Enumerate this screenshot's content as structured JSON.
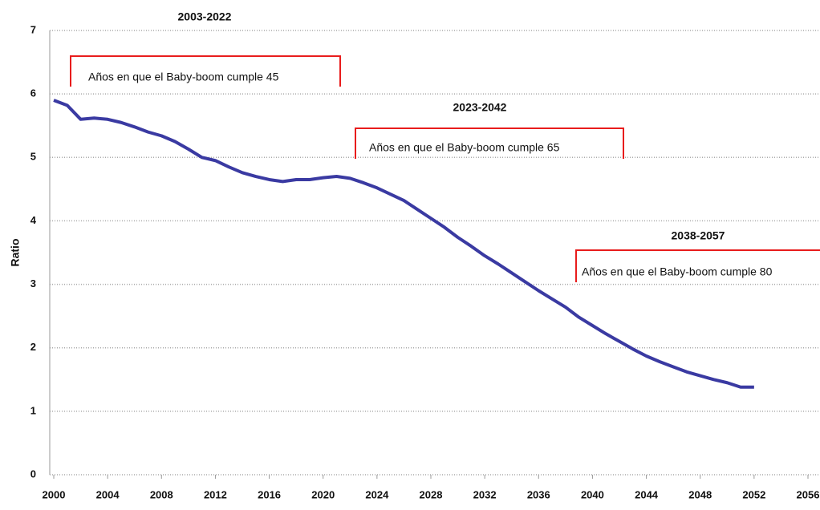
{
  "chart_data": {
    "type": "line",
    "y_label": "Ratio",
    "x": [
      2000,
      2001,
      2002,
      2003,
      2004,
      2005,
      2006,
      2007,
      2008,
      2009,
      2010,
      2011,
      2012,
      2013,
      2014,
      2015,
      2016,
      2017,
      2018,
      2019,
      2020,
      2021,
      2022,
      2023,
      2024,
      2025,
      2026,
      2027,
      2028,
      2029,
      2030,
      2031,
      2032,
      2033,
      2034,
      2035,
      2036,
      2037,
      2038,
      2039,
      2040,
      2041,
      2042,
      2043,
      2044,
      2045,
      2046,
      2047,
      2048,
      2049,
      2050,
      2051,
      2052
    ],
    "series": [
      {
        "color": "#3a3aa2",
        "values": [
          5.9,
          5.82,
          5.6,
          5.62,
          5.6,
          5.55,
          5.48,
          5.4,
          5.34,
          5.25,
          5.13,
          5.0,
          4.95,
          4.85,
          4.76,
          4.7,
          4.65,
          4.62,
          4.65,
          4.65,
          4.68,
          4.7,
          4.67,
          4.6,
          4.52,
          4.42,
          4.32,
          4.18,
          4.04,
          3.9,
          3.74,
          3.6,
          3.45,
          3.32,
          3.18,
          3.04,
          2.9,
          2.77,
          2.64,
          2.48,
          2.35,
          2.22,
          2.1,
          1.98,
          1.87,
          1.78,
          1.7,
          1.62,
          1.56,
          1.5,
          1.45,
          1.38,
          1.38
        ]
      }
    ],
    "xlim": [
      2000,
      2056
    ],
    "xticks": [
      2000,
      2004,
      2008,
      2012,
      2016,
      2020,
      2024,
      2028,
      2032,
      2036,
      2040,
      2044,
      2048,
      2052,
      2056
    ],
    "ylim": [
      0,
      7
    ],
    "yticks": [
      0,
      1,
      2,
      3,
      4,
      5,
      6,
      7
    ],
    "grid": true,
    "annotations": [
      {
        "label": "2003-2022",
        "text": "Años en que el Baby-boom cumple 45"
      },
      {
        "label": "2023-2042",
        "text": "Años en que el Baby-boom cumple 65"
      },
      {
        "label": "2038-2057",
        "text": "Años en que el Baby-boom cumple 80"
      }
    ]
  }
}
